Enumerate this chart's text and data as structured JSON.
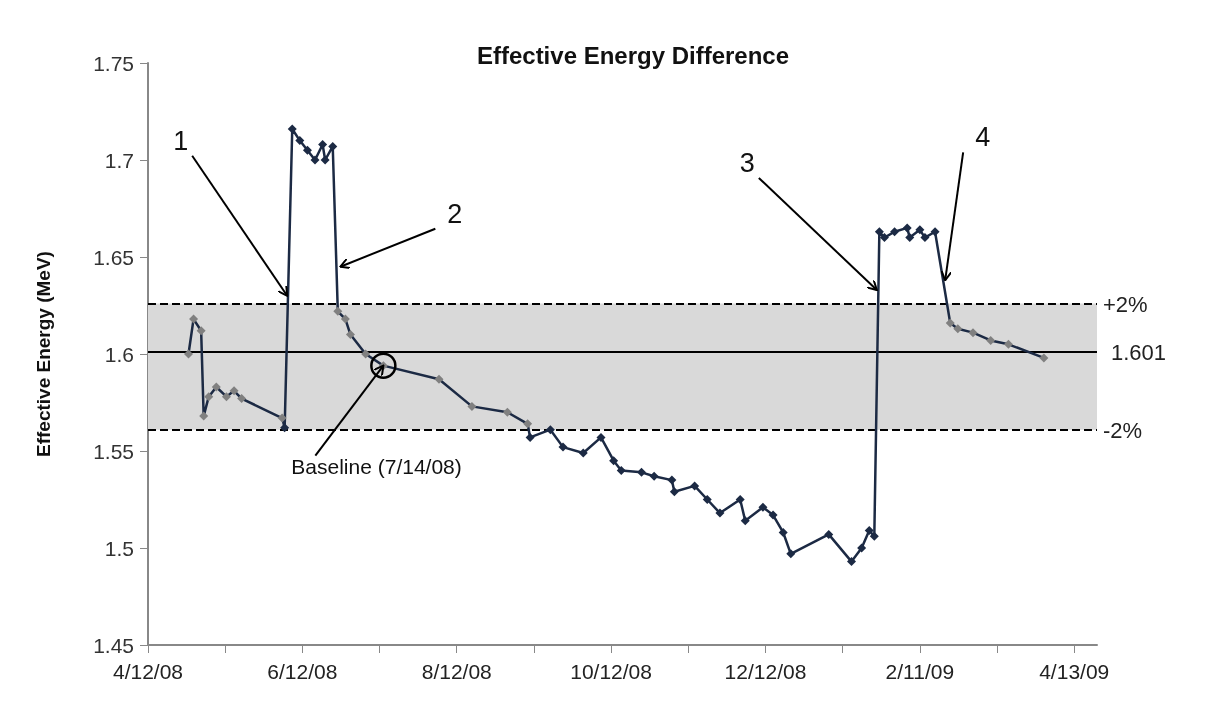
{
  "chart_data": {
    "type": "line",
    "title": "Effective Energy Difference",
    "ylabel": "Effective Energy (MeV)",
    "xlim": [
      "2008-04-12",
      "2009-04-22"
    ],
    "xticks": [
      {
        "value": "2008-04-12",
        "label": "4/12/08"
      },
      {
        "value": "2008-05-12T12:00",
        "label": null
      },
      {
        "value": "2008-06-12",
        "label": "6/12/08"
      },
      {
        "value": "2008-07-12T12:00",
        "label": null
      },
      {
        "value": "2008-08-12",
        "label": "8/12/08"
      },
      {
        "value": "2008-09-11T12:00",
        "label": null
      },
      {
        "value": "2008-10-12",
        "label": "10/12/08"
      },
      {
        "value": "2008-11-11T12:00",
        "label": null
      },
      {
        "value": "2008-12-12",
        "label": "12/12/08"
      },
      {
        "value": "2009-01-11T12:00",
        "label": null
      },
      {
        "value": "2009-02-11",
        "label": "2/11/09"
      },
      {
        "value": "2009-03-13T12:00",
        "label": null
      },
      {
        "value": "2009-04-13",
        "label": "4/13/09"
      }
    ],
    "ylim": [
      1.45,
      1.75
    ],
    "yticks": [
      1.45,
      1.5,
      1.55,
      1.6,
      1.65,
      1.7,
      1.75
    ],
    "grid": false,
    "marker": "diamond",
    "line_style": "solid",
    "x": [
      "2008-04-28",
      "2008-04-30",
      "2008-05-03",
      "2008-05-04",
      "2008-05-06",
      "2008-05-09",
      "2008-05-13",
      "2008-05-16",
      "2008-05-19",
      "2008-06-04",
      "2008-06-05",
      "2008-06-08",
      "2008-06-11",
      "2008-06-14",
      "2008-06-17",
      "2008-06-20",
      "2008-06-21",
      "2008-06-24",
      "2008-06-26",
      "2008-06-29",
      "2008-07-01",
      "2008-07-07",
      "2008-07-14",
      "2008-08-05",
      "2008-08-18",
      "2008-09-01",
      "2008-09-09",
      "2008-09-10",
      "2008-09-18",
      "2008-09-23",
      "2008-10-01",
      "2008-10-08",
      "2008-10-13",
      "2008-10-16",
      "2008-10-24",
      "2008-10-29",
      "2008-11-05",
      "2008-11-06",
      "2008-11-14",
      "2008-11-19",
      "2008-11-24",
      "2008-12-02",
      "2008-12-04",
      "2008-12-11",
      "2008-12-15",
      "2008-12-19",
      "2008-12-22",
      "2009-01-06",
      "2009-01-15",
      "2009-01-19",
      "2009-01-22",
      "2009-01-24",
      "2009-01-26",
      "2009-01-28",
      "2009-02-01",
      "2009-02-06",
      "2009-02-07",
      "2009-02-11",
      "2009-02-13",
      "2009-02-17",
      "2009-02-23",
      "2009-02-26",
      "2009-03-04",
      "2009-03-11",
      "2009-03-18",
      "2009-04-01"
    ],
    "series": [
      {
        "color": "#1c2a44",
        "values": [
          1.6,
          1.618,
          1.612,
          1.568,
          1.578,
          1.583,
          1.578,
          1.581,
          1.577,
          1.567,
          1.562,
          1.716,
          1.71,
          1.705,
          1.7,
          1.708,
          1.7,
          1.707,
          1.622,
          1.618,
          1.61,
          1.6,
          1.594,
          1.587,
          1.573,
          1.57,
          1.564,
          1.557,
          1.561,
          1.552,
          1.549,
          1.557,
          1.545,
          1.54,
          1.539,
          1.537,
          1.535,
          1.529,
          1.532,
          1.525,
          1.518,
          1.525,
          1.514,
          1.521,
          1.517,
          1.508,
          1.497,
          1.507,
          1.493,
          1.5,
          1.509,
          1.506,
          1.663,
          1.66,
          1.663,
          1.665,
          1.66,
          1.664,
          1.66,
          1.663,
          1.616,
          1.613,
          1.611,
          1.607,
          1.605,
          1.598
        ],
        "colors": [
          "#808080",
          "#808080",
          "#808080",
          "#808080",
          "#808080",
          "#808080",
          "#808080",
          "#808080",
          "#808080",
          "#808080",
          "#1c2a44",
          "#1c2a44",
          "#1c2a44",
          "#1c2a44",
          "#1c2a44",
          "#1c2a44",
          "#1c2a44",
          "#1c2a44",
          "#808080",
          "#808080",
          "#808080",
          "#808080",
          "#808080",
          "#808080",
          "#808080",
          "#808080",
          "#808080",
          "#1c2a44",
          "#1c2a44",
          "#1c2a44",
          "#1c2a44",
          "#1c2a44",
          "#1c2a44",
          "#1c2a44",
          "#1c2a44",
          "#1c2a44",
          "#1c2a44",
          "#1c2a44",
          "#1c2a44",
          "#1c2a44",
          "#1c2a44",
          "#1c2a44",
          "#1c2a44",
          "#1c2a44",
          "#1c2a44",
          "#1c2a44",
          "#1c2a44",
          "#1c2a44",
          "#1c2a44",
          "#1c2a44",
          "#1c2a44",
          "#1c2a44",
          "#1c2a44",
          "#1c2a44",
          "#1c2a44",
          "#1c2a44",
          "#1c2a44",
          "#1c2a44",
          "#1c2a44",
          "#1c2a44",
          "#808080",
          "#808080",
          "#808080",
          "#808080",
          "#808080",
          "#808080"
        ]
      }
    ],
    "bands": [
      {
        "axis": "y",
        "from": 1.561,
        "to": 1.626,
        "color": "#d9d9d9"
      }
    ],
    "ref_lines": [
      {
        "axis": "y",
        "value": 1.626,
        "color": "#000000",
        "line_style": "dashed"
      },
      {
        "axis": "y",
        "value": 1.601,
        "label": "1.601",
        "color": "#000000",
        "line_style": "solid"
      },
      {
        "axis": "y",
        "value": 1.561,
        "color": "#000000",
        "line_style": "dashed"
      }
    ],
    "annotations": [
      {
        "text": "1",
        "x": "2008-06-06",
        "y": 1.63
      },
      {
        "text": "2",
        "x": "2008-06-27",
        "y": 1.645
      },
      {
        "text": "3",
        "x": "2009-01-25",
        "y": 1.633
      },
      {
        "text": "4",
        "x": "2009-02-21",
        "y": 1.638
      },
      {
        "text": "Baseline (7/14/08)",
        "x": "2008-07-14",
        "y": 1.594
      },
      {
        "text": "+2%",
        "x": "2009-04-22",
        "y": 1.626
      },
      {
        "text": "-2%",
        "x": "2009-04-22",
        "y": 1.561
      }
    ]
  }
}
